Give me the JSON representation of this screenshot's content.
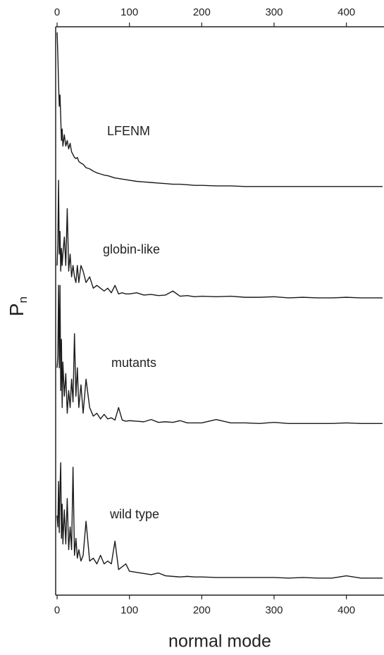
{
  "chart_data": {
    "type": "line",
    "xlabel": "normal mode",
    "ylabel": "P",
    "ylabel_subscript": "n",
    "xlim": [
      -2,
      452
    ],
    "ylim": [
      0,
      100
    ],
    "xticks": [
      0,
      100,
      200,
      300,
      400
    ],
    "x": [
      0,
      1,
      2,
      3,
      4,
      5,
      6,
      7,
      8,
      10,
      12,
      14,
      16,
      18,
      20,
      22,
      24,
      26,
      28,
      30,
      33,
      36,
      40,
      45,
      50,
      55,
      60,
      65,
      70,
      75,
      80,
      85,
      90,
      95,
      100,
      110,
      120,
      130,
      140,
      150,
      160,
      170,
      180,
      190,
      200,
      220,
      240,
      260,
      280,
      300,
      320,
      340,
      360,
      380,
      400,
      420,
      440,
      450
    ],
    "series": [
      {
        "name": "LFENM",
        "color": "#1a1a1a",
        "values": [
          99,
          95,
          90,
          86,
          88,
          84,
          80,
          82,
          79,
          81,
          79,
          80,
          78.5,
          79.5,
          78,
          77.5,
          77,
          76.8,
          77,
          76.3,
          76,
          75.8,
          75.2,
          75,
          74.6,
          74.3,
          74.1,
          73.9,
          73.8,
          73.6,
          73.4,
          73.3,
          73.2,
          73.1,
          73,
          72.8,
          72.7,
          72.6,
          72.5,
          72.4,
          72.3,
          72.3,
          72.2,
          72.1,
          72.1,
          72,
          72,
          71.9,
          71.9,
          71.9,
          71.9,
          71.9,
          71.9,
          71.9,
          71.9,
          71.9,
          71.9,
          71.9
        ]
      },
      {
        "name": "globin-like",
        "color": "#1a1a1a",
        "values": [
          58,
          62,
          73,
          60,
          64,
          57,
          61,
          58,
          60,
          63,
          58,
          68,
          57,
          60,
          56,
          58,
          56,
          55,
          58,
          55,
          58,
          57,
          55,
          56,
          54,
          54.5,
          54,
          53.5,
          54,
          53.2,
          54.5,
          53,
          53.2,
          53,
          53,
          53.2,
          52.8,
          52.9,
          52.7,
          52.8,
          53.5,
          52.6,
          52.7,
          52.5,
          52.6,
          52.5,
          52.6,
          52.4,
          52.4,
          52.5,
          52.3,
          52.4,
          52.3,
          52.3,
          52.4,
          52.3,
          52.3,
          52.3
        ]
      },
      {
        "name": "mutants",
        "color": "#1a1a1a",
        "values": [
          40,
          42,
          54.5,
          40,
          54.5,
          36,
          45,
          33,
          41,
          35,
          39,
          32,
          36,
          33,
          38,
          34,
          46,
          35,
          40,
          33,
          37,
          32,
          38,
          33,
          31.5,
          32,
          31,
          31.8,
          31,
          31.2,
          30.8,
          33,
          30.8,
          30.6,
          30.7,
          30.6,
          30.5,
          30.9,
          30.4,
          30.5,
          30.4,
          30.7,
          30.3,
          30.3,
          30.3,
          30.9,
          30.3,
          30.3,
          30.2,
          30.4,
          30.2,
          30.2,
          30.2,
          30.2,
          30.3,
          30.2,
          30.2,
          30.2
        ]
      },
      {
        "name": "wild type",
        "color": "#1a1a1a",
        "values": [
          14,
          12,
          20,
          11,
          19,
          23.3,
          10,
          16,
          9,
          15,
          9,
          17,
          8,
          12,
          8,
          22.5,
          7,
          10,
          6.5,
          8,
          6,
          7,
          13,
          6,
          6.5,
          5.5,
          7,
          5.5,
          6,
          5.5,
          9.5,
          4.5,
          5,
          5.5,
          4.2,
          4,
          3.8,
          3.6,
          3.9,
          3.4,
          3.3,
          3.2,
          3.3,
          3.2,
          3.2,
          3.1,
          3.1,
          3.1,
          3.1,
          3.1,
          3.0,
          3.1,
          3.0,
          3.0,
          3.4,
          3.0,
          3.0,
          3.0
        ]
      }
    ]
  }
}
